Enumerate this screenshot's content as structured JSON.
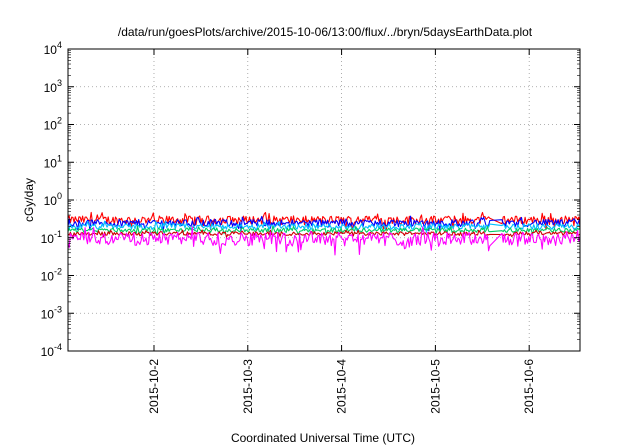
{
  "chart_data": {
    "type": "line",
    "title": "/data/run/goesPlots/archive/2015-10-06/13:00/flux/../bryn/5daysEarthData.plot",
    "xlabel": "Coordinated Universal Time (UTC)",
    "ylabel": "cGy/day",
    "x_range": [
      "2015-10-01 02:00",
      "2015-10-06 13:00"
    ],
    "x_ticks": [
      "2015-10-2",
      "2015-10-3",
      "2015-10-4",
      "2015-10-5",
      "2015-10-6"
    ],
    "x_tick_dates": [
      "2015-10-02",
      "2015-10-03",
      "2015-10-04",
      "2015-10-05",
      "2015-10-06"
    ],
    "y_scale": "log",
    "ylim": [
      0.0001,
      10000
    ],
    "y_tick_labels": [
      {
        "base": "10",
        "exp": "-4"
      },
      {
        "base": "10",
        "exp": "-3"
      },
      {
        "base": "10",
        "exp": "-2"
      },
      {
        "base": "10",
        "exp": "-1"
      },
      {
        "base": "10",
        "exp": "0"
      },
      {
        "base": "10",
        "exp": "1"
      },
      {
        "base": "10",
        "exp": "2"
      },
      {
        "base": "10",
        "exp": "3"
      },
      {
        "base": "10",
        "exp": "4"
      }
    ],
    "grid": true,
    "gap": [
      "2015-10-05 14:00",
      "2015-10-05 17:00"
    ],
    "series": [
      {
        "color": "#ff0000",
        "level": 0.3,
        "spread": 0.12
      },
      {
        "color": "#0000ff",
        "level": 0.25,
        "spread": 0.1
      },
      {
        "color": "#00bfff",
        "level": 0.2,
        "spread": 0.08
      },
      {
        "color": "#00cc66",
        "level": 0.16,
        "spread": 0.06
      },
      {
        "color": "#cc0000",
        "level": 0.13,
        "spread": 0.05
      },
      {
        "color": "#ff00ff",
        "level": 0.1,
        "spread": 0.18
      }
    ]
  }
}
